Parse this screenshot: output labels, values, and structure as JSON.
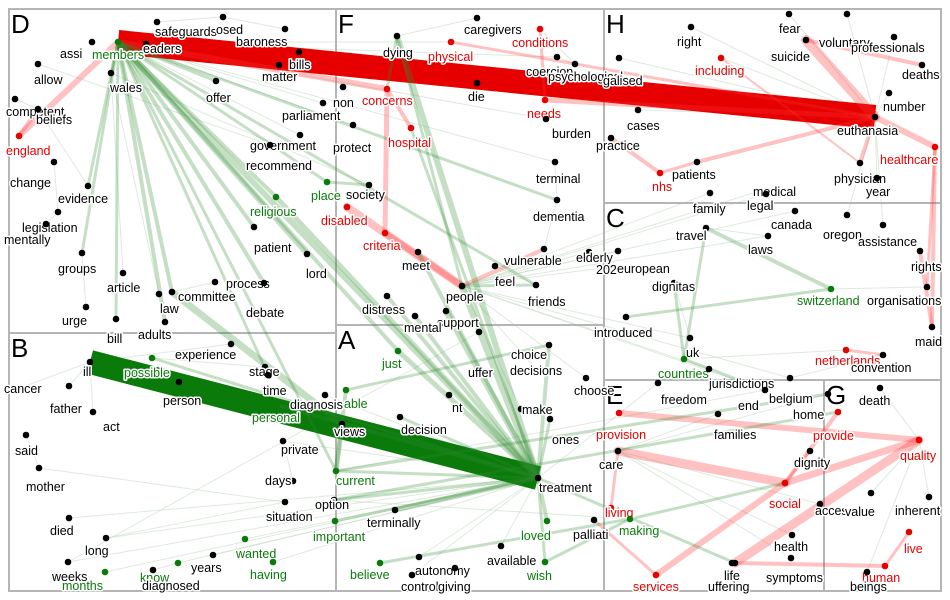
{
  "colors": {
    "neutral": "#000000",
    "positive": "#0a7a0a",
    "negative": "#e60000",
    "pos_edge": "#2e8b2e",
    "neg_edge": "#ff3333",
    "faint_edge": "#c8dcc8",
    "panel_border": "#b5b5b5"
  },
  "panels": [
    {
      "letter": "D"
    },
    {
      "letter": "F"
    },
    {
      "letter": "H"
    },
    {
      "letter": "C"
    },
    {
      "letter": "B"
    },
    {
      "letter": "A"
    },
    {
      "letter": "E"
    },
    {
      "letter": "G"
    }
  ],
  "terms": [
    {
      "text": "safeguards",
      "type": "neutral"
    },
    {
      "text": "osed",
      "type": "neutral"
    },
    {
      "text": "baroness",
      "type": "neutral"
    },
    {
      "text": "assi",
      "type": "neutral"
    },
    {
      "text": "members",
      "type": "positive"
    },
    {
      "text": "eaders",
      "type": "neutral"
    },
    {
      "text": "bills",
      "type": "neutral"
    },
    {
      "text": "allow",
      "type": "neutral"
    },
    {
      "text": "wales",
      "type": "neutral"
    },
    {
      "text": "matter",
      "type": "neutral"
    },
    {
      "text": "offer",
      "type": "neutral"
    },
    {
      "text": "competent",
      "type": "neutral"
    },
    {
      "text": "beliefs",
      "type": "neutral"
    },
    {
      "text": "england",
      "type": "negative"
    },
    {
      "text": "government",
      "type": "neutral"
    },
    {
      "text": "change",
      "type": "neutral"
    },
    {
      "text": "recommend",
      "type": "neutral"
    },
    {
      "text": "evidence",
      "type": "neutral"
    },
    {
      "text": "religious",
      "type": "positive"
    },
    {
      "text": "legislation",
      "type": "neutral"
    },
    {
      "text": "mentally",
      "type": "neutral"
    },
    {
      "text": "patient",
      "type": "neutral"
    },
    {
      "text": "groups",
      "type": "neutral"
    },
    {
      "text": "lord",
      "type": "neutral"
    },
    {
      "text": "article",
      "type": "neutral"
    },
    {
      "text": "process",
      "type": "neutral"
    },
    {
      "text": "committee",
      "type": "neutral"
    },
    {
      "text": "law",
      "type": "neutral"
    },
    {
      "text": "debate",
      "type": "neutral"
    },
    {
      "text": "urge",
      "type": "neutral"
    },
    {
      "text": "adults",
      "type": "neutral"
    },
    {
      "text": "bill",
      "type": "neutral"
    },
    {
      "text": "dying",
      "type": "neutral"
    },
    {
      "text": "caregivers",
      "type": "neutral"
    },
    {
      "text": "conditions",
      "type": "negative"
    },
    {
      "text": "physical",
      "type": "negative"
    },
    {
      "text": "coercion",
      "type": "neutral"
    },
    {
      "text": "psychological",
      "type": "neutral"
    },
    {
      "text": "non",
      "type": "neutral"
    },
    {
      "text": "concerns",
      "type": "negative"
    },
    {
      "text": "die",
      "type": "neutral"
    },
    {
      "text": "parliament",
      "type": "neutral"
    },
    {
      "text": "needs",
      "type": "negative"
    },
    {
      "text": "protect",
      "type": "neutral"
    },
    {
      "text": "hospital",
      "type": "negative"
    },
    {
      "text": "burden",
      "type": "neutral"
    },
    {
      "text": "place",
      "type": "positive"
    },
    {
      "text": "society",
      "type": "neutral"
    },
    {
      "text": "terminal",
      "type": "neutral"
    },
    {
      "text": "disabled",
      "type": "negative"
    },
    {
      "text": "dementia",
      "type": "neutral"
    },
    {
      "text": "criteria",
      "type": "negative"
    },
    {
      "text": "meet",
      "type": "neutral"
    },
    {
      "text": "vulnerable",
      "type": "neutral"
    },
    {
      "text": "elderly",
      "type": "neutral"
    },
    {
      "text": "202",
      "type": "neutral"
    },
    {
      "text": "feel",
      "type": "neutral"
    },
    {
      "text": "people",
      "type": "neutral"
    },
    {
      "text": "friends",
      "type": "neutral"
    },
    {
      "text": "distress",
      "type": "neutral"
    },
    {
      "text": "support",
      "type": "neutral"
    },
    {
      "text": "mental",
      "type": "neutral"
    },
    {
      "text": "right",
      "type": "neutral"
    },
    {
      "text": "fear",
      "type": "neutral"
    },
    {
      "text": "voluntary",
      "type": "neutral"
    },
    {
      "text": "professionals",
      "type": "neutral"
    },
    {
      "text": "galised",
      "type": "neutral"
    },
    {
      "text": "including",
      "type": "negative"
    },
    {
      "text": "suicide",
      "type": "neutral"
    },
    {
      "text": "deaths",
      "type": "neutral"
    },
    {
      "text": "number",
      "type": "neutral"
    },
    {
      "text": "cases",
      "type": "neutral"
    },
    {
      "text": "euthanasia",
      "type": "neutral"
    },
    {
      "text": "practice",
      "type": "neutral"
    },
    {
      "text": "healthcare",
      "type": "negative"
    },
    {
      "text": "patients",
      "type": "neutral"
    },
    {
      "text": "physician",
      "type": "neutral"
    },
    {
      "text": "nhs",
      "type": "negative"
    },
    {
      "text": "year",
      "type": "neutral"
    },
    {
      "text": "medical",
      "type": "neutral"
    },
    {
      "text": "family",
      "type": "neutral"
    },
    {
      "text": "legal",
      "type": "neutral"
    },
    {
      "text": "travel",
      "type": "neutral"
    },
    {
      "text": "canada",
      "type": "neutral"
    },
    {
      "text": "laws",
      "type": "neutral"
    },
    {
      "text": "oregon",
      "type": "neutral"
    },
    {
      "text": "assistance",
      "type": "neutral"
    },
    {
      "text": "european",
      "type": "neutral"
    },
    {
      "text": "rights",
      "type": "neutral"
    },
    {
      "text": "switzerland",
      "type": "positive"
    },
    {
      "text": "organisations",
      "type": "neutral"
    },
    {
      "text": "dignitas",
      "type": "neutral"
    },
    {
      "text": "introduced",
      "type": "neutral"
    },
    {
      "text": "maid",
      "type": "neutral"
    },
    {
      "text": "uk",
      "type": "neutral"
    },
    {
      "text": "countries",
      "type": "positive"
    },
    {
      "text": "netherlands",
      "type": "negative"
    },
    {
      "text": "jurisdictions",
      "type": "neutral"
    },
    {
      "text": "belgium",
      "type": "neutral"
    },
    {
      "text": "convention",
      "type": "neutral"
    },
    {
      "text": "ill",
      "type": "neutral"
    },
    {
      "text": "possible",
      "type": "positive"
    },
    {
      "text": "experience",
      "type": "neutral"
    },
    {
      "text": "stage",
      "type": "neutral"
    },
    {
      "text": "cancer",
      "type": "neutral"
    },
    {
      "text": "father",
      "type": "neutral"
    },
    {
      "text": "person",
      "type": "neutral"
    },
    {
      "text": "time",
      "type": "neutral"
    },
    {
      "text": "act",
      "type": "neutral"
    },
    {
      "text": "personal",
      "type": "positive"
    },
    {
      "text": "diagnosis",
      "type": "neutral"
    },
    {
      "text": "said",
      "type": "neutral"
    },
    {
      "text": "private",
      "type": "neutral"
    },
    {
      "text": "mother",
      "type": "neutral"
    },
    {
      "text": "days",
      "type": "neutral"
    },
    {
      "text": "situation",
      "type": "neutral"
    },
    {
      "text": "died",
      "type": "neutral"
    },
    {
      "text": "long",
      "type": "neutral"
    },
    {
      "text": "wanted",
      "type": "positive"
    },
    {
      "text": "years",
      "type": "neutral"
    },
    {
      "text": "weeks",
      "type": "neutral"
    },
    {
      "text": "know",
      "type": "positive"
    },
    {
      "text": "having",
      "type": "positive"
    },
    {
      "text": "months",
      "type": "positive"
    },
    {
      "text": "diagnosed",
      "type": "neutral"
    },
    {
      "text": "uffer",
      "type": "neutral"
    },
    {
      "text": "just",
      "type": "positive"
    },
    {
      "text": "choice",
      "type": "neutral"
    },
    {
      "text": "decisions",
      "type": "neutral"
    },
    {
      "text": "choose",
      "type": "neutral"
    },
    {
      "text": "able",
      "type": "positive"
    },
    {
      "text": "nt",
      "type": "neutral"
    },
    {
      "text": "make",
      "type": "neutral"
    },
    {
      "text": "views",
      "type": "neutral"
    },
    {
      "text": "decision",
      "type": "neutral"
    },
    {
      "text": "ones",
      "type": "neutral"
    },
    {
      "text": "current",
      "type": "positive"
    },
    {
      "text": "treatment",
      "type": "neutral"
    },
    {
      "text": "option",
      "type": "neutral"
    },
    {
      "text": "terminally",
      "type": "neutral"
    },
    {
      "text": "important",
      "type": "positive"
    },
    {
      "text": "loved",
      "type": "positive"
    },
    {
      "text": "available",
      "type": "neutral"
    },
    {
      "text": "wish",
      "type": "positive"
    },
    {
      "text": "believe",
      "type": "positive"
    },
    {
      "text": "autonomy",
      "type": "neutral"
    },
    {
      "text": "control",
      "type": "neutral"
    },
    {
      "text": "giving",
      "type": "neutral"
    },
    {
      "text": "freedom",
      "type": "neutral"
    },
    {
      "text": "end",
      "type": "neutral"
    },
    {
      "text": "provision",
      "type": "negative"
    },
    {
      "text": "home",
      "type": "neutral"
    },
    {
      "text": "families",
      "type": "neutral"
    },
    {
      "text": "care",
      "type": "neutral"
    },
    {
      "text": "provide",
      "type": "negative"
    },
    {
      "text": "dignity",
      "type": "neutral"
    },
    {
      "text": "living",
      "type": "negative"
    },
    {
      "text": "palliati",
      "type": "neutral"
    },
    {
      "text": "making",
      "type": "positive"
    },
    {
      "text": "social",
      "type": "negative"
    },
    {
      "text": "access",
      "type": "neutral"
    },
    {
      "text": "health",
      "type": "neutral"
    },
    {
      "text": "services",
      "type": "negative"
    },
    {
      "text": "uffering",
      "type": "neutral"
    },
    {
      "text": "life",
      "type": "neutral"
    },
    {
      "text": "symptoms",
      "type": "neutral"
    },
    {
      "text": "death",
      "type": "neutral"
    },
    {
      "text": "quality",
      "type": "negative"
    },
    {
      "text": "value",
      "type": "neutral"
    },
    {
      "text": "inherent",
      "type": "neutral"
    },
    {
      "text": "live",
      "type": "negative"
    },
    {
      "text": "human",
      "type": "negative"
    },
    {
      "text": "beings",
      "type": "neutral"
    }
  ]
}
